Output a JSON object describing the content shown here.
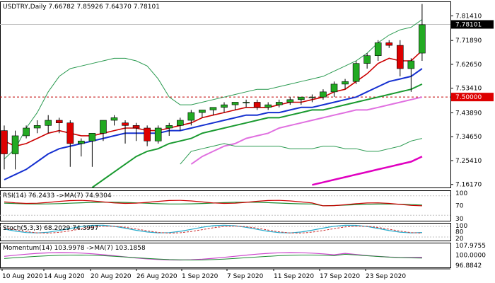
{
  "chart_data": {
    "type": "candlestick",
    "header": {
      "symbol": "USDTRY,Daily",
      "open": "7.66782",
      "high": "7.85926",
      "low": "7.64370",
      "close": "7.78101"
    },
    "price_axis": {
      "min": 7.15,
      "max": 7.87,
      "ticks": [
        "7.81410",
        "7.71890",
        "7.62650",
        "7.53410",
        "7.43890",
        "7.34650",
        "7.25410",
        "7.16170"
      ]
    },
    "current_price": "7.78101",
    "level_line": {
      "value": 7.5,
      "label": "7.50000"
    },
    "x_labels": [
      "10 Aug 2020",
      "14 Aug 2020",
      "20 Aug 2020",
      "26 Aug 2020",
      "1 Sep 2020",
      "7 Sep 2020",
      "11 Sep 2020",
      "17 Sep 2020",
      "23 Sep 2020"
    ],
    "candles": [
      {
        "o": 7.37,
        "h": 7.39,
        "l": 7.22,
        "c": 7.28
      },
      {
        "o": 7.28,
        "h": 7.37,
        "l": 7.22,
        "c": 7.35
      },
      {
        "o": 7.35,
        "h": 7.39,
        "l": 7.34,
        "c": 7.38
      },
      {
        "o": 7.38,
        "h": 7.41,
        "l": 7.36,
        "c": 7.39
      },
      {
        "o": 7.39,
        "h": 7.43,
        "l": 7.36,
        "c": 7.41
      },
      {
        "o": 7.41,
        "h": 7.42,
        "l": 7.36,
        "c": 7.4
      },
      {
        "o": 7.4,
        "h": 7.41,
        "l": 7.23,
        "c": 7.32
      },
      {
        "o": 7.32,
        "h": 7.34,
        "l": 7.27,
        "c": 7.33
      },
      {
        "o": 7.33,
        "h": 7.36,
        "l": 7.23,
        "c": 7.36
      },
      {
        "o": 7.36,
        "h": 7.41,
        "l": 7.33,
        "c": 7.41
      },
      {
        "o": 7.41,
        "h": 7.43,
        "l": 7.39,
        "c": 7.42
      },
      {
        "o": 7.4,
        "h": 7.41,
        "l": 7.32,
        "c": 7.39
      },
      {
        "o": 7.39,
        "h": 7.4,
        "l": 7.33,
        "c": 7.38
      },
      {
        "o": 7.38,
        "h": 7.39,
        "l": 7.31,
        "c": 7.33
      },
      {
        "o": 7.33,
        "h": 7.39,
        "l": 7.32,
        "c": 7.38
      },
      {
        "o": 7.38,
        "h": 7.4,
        "l": 7.35,
        "c": 7.39
      },
      {
        "o": 7.39,
        "h": 7.42,
        "l": 7.37,
        "c": 7.41
      },
      {
        "o": 7.41,
        "h": 7.45,
        "l": 7.39,
        "c": 7.44
      },
      {
        "o": 7.44,
        "h": 7.45,
        "l": 7.42,
        "c": 7.45
      },
      {
        "o": 7.45,
        "h": 7.46,
        "l": 7.43,
        "c": 7.46
      },
      {
        "o": 7.46,
        "h": 7.48,
        "l": 7.44,
        "c": 7.47
      },
      {
        "o": 7.47,
        "h": 7.48,
        "l": 7.45,
        "c": 7.48
      },
      {
        "o": 7.48,
        "h": 7.49,
        "l": 7.46,
        "c": 7.48
      },
      {
        "o": 7.48,
        "h": 7.49,
        "l": 7.45,
        "c": 7.46
      },
      {
        "o": 7.46,
        "h": 7.48,
        "l": 7.45,
        "c": 7.47
      },
      {
        "o": 7.47,
        "h": 7.49,
        "l": 7.46,
        "c": 7.48
      },
      {
        "o": 7.48,
        "h": 7.5,
        "l": 7.47,
        "c": 7.49
      },
      {
        "o": 7.49,
        "h": 7.5,
        "l": 7.47,
        "c": 7.5
      },
      {
        "o": 7.5,
        "h": 7.51,
        "l": 7.48,
        "c": 7.5
      },
      {
        "o": 7.5,
        "h": 7.53,
        "l": 7.49,
        "c": 7.52
      },
      {
        "o": 7.52,
        "h": 7.56,
        "l": 7.5,
        "c": 7.55
      },
      {
        "o": 7.55,
        "h": 7.57,
        "l": 7.53,
        "c": 7.56
      },
      {
        "o": 7.56,
        "h": 7.64,
        "l": 7.55,
        "c": 7.63
      },
      {
        "o": 7.63,
        "h": 7.67,
        "l": 7.61,
        "c": 7.66
      },
      {
        "o": 7.66,
        "h": 7.72,
        "l": 7.64,
        "c": 7.71
      },
      {
        "o": 7.71,
        "h": 7.72,
        "l": 7.69,
        "c": 7.7
      },
      {
        "o": 7.7,
        "h": 7.72,
        "l": 7.58,
        "c": 7.61
      },
      {
        "o": 7.61,
        "h": 7.65,
        "l": 7.52,
        "c": 7.64
      },
      {
        "o": 7.67,
        "h": 7.86,
        "l": 7.64,
        "c": 7.78
      }
    ],
    "overlays": [
      {
        "color": "#cc0000",
        "width": 1.6,
        "values": [
          7.33,
          7.31,
          7.32,
          7.34,
          7.36,
          7.37,
          7.36,
          7.35,
          7.35,
          7.36,
          7.37,
          7.38,
          7.38,
          7.37,
          7.37,
          7.38,
          7.39,
          7.4,
          7.42,
          7.43,
          7.44,
          7.45,
          7.46,
          7.46,
          7.46,
          7.47,
          7.48,
          7.48,
          7.49,
          7.5,
          7.52,
          7.53,
          7.56,
          7.59,
          7.63,
          7.65,
          7.64,
          7.64,
          7.68
        ]
      },
      {
        "color": "#1530d0",
        "width": 2,
        "values": [
          7.18,
          7.2,
          7.22,
          7.25,
          7.28,
          7.3,
          7.31,
          7.32,
          7.33,
          7.34,
          7.35,
          7.36,
          7.36,
          7.36,
          7.36,
          7.37,
          7.37,
          7.38,
          7.39,
          7.4,
          7.41,
          7.42,
          7.43,
          7.43,
          7.44,
          7.44,
          7.45,
          7.46,
          7.46,
          7.47,
          7.48,
          7.49,
          7.5,
          7.52,
          7.54,
          7.56,
          7.57,
          7.58,
          7.61
        ]
      },
      {
        "color": "#1a9a30",
        "width": 2,
        "values": [
          null,
          null,
          null,
          null,
          null,
          null,
          null,
          null,
          7.15,
          7.18,
          7.21,
          7.24,
          7.27,
          7.29,
          7.3,
          7.32,
          7.33,
          7.34,
          7.36,
          7.37,
          7.38,
          7.39,
          7.4,
          7.41,
          7.42,
          7.42,
          7.43,
          7.44,
          7.45,
          7.45,
          7.46,
          7.47,
          7.48,
          7.49,
          7.5,
          7.51,
          7.52,
          7.53,
          7.55
        ]
      },
      {
        "color": "#e070e0",
        "width": 2,
        "values": [
          null,
          null,
          null,
          null,
          null,
          null,
          null,
          null,
          null,
          null,
          null,
          null,
          null,
          null,
          null,
          null,
          null,
          7.24,
          7.27,
          7.29,
          7.31,
          7.32,
          7.34,
          7.35,
          7.36,
          7.38,
          7.39,
          7.4,
          7.41,
          7.42,
          7.43,
          7.44,
          7.45,
          7.45,
          7.46,
          7.47,
          7.48,
          7.49,
          7.5
        ]
      },
      {
        "color": "#e000c0",
        "width": 2.5,
        "values": [
          null,
          null,
          null,
          null,
          null,
          null,
          null,
          null,
          null,
          null,
          null,
          null,
          null,
          null,
          null,
          null,
          null,
          null,
          null,
          null,
          null,
          null,
          null,
          null,
          null,
          null,
          null,
          null,
          7.16,
          7.17,
          7.18,
          7.19,
          7.2,
          7.21,
          7.22,
          7.23,
          7.24,
          7.25,
          7.27
        ]
      },
      {
        "color": "#2a9a50",
        "width": 1,
        "values": [
          7.26,
          7.3,
          7.38,
          7.44,
          7.52,
          7.58,
          7.61,
          7.62,
          7.63,
          7.64,
          7.65,
          7.65,
          7.64,
          7.62,
          7.57,
          7.5,
          7.47,
          7.47,
          7.48,
          7.49,
          7.5,
          7.51,
          7.52,
          7.53,
          7.53,
          7.54,
          7.55,
          7.56,
          7.57,
          7.58,
          7.6,
          7.62,
          7.64,
          7.67,
          7.71,
          7.74,
          7.76,
          7.77,
          7.8
        ]
      },
      {
        "color": "#2a9a50",
        "width": 1,
        "values": [
          null,
          null,
          null,
          null,
          null,
          null,
          null,
          null,
          null,
          null,
          null,
          null,
          null,
          null,
          null,
          null,
          7.24,
          7.29,
          7.3,
          7.31,
          7.32,
          7.31,
          7.31,
          7.31,
          7.31,
          7.31,
          7.3,
          7.3,
          7.3,
          7.31,
          7.31,
          7.3,
          7.3,
          7.29,
          7.29,
          7.3,
          7.31,
          7.33,
          7.34
        ]
      }
    ],
    "indicators": [
      {
        "label": "RSI(14) 76.2433  ->MA(7) 74.9304",
        "axis_labels": [
          "100",
          "70",
          "30"
        ],
        "levels": [
          0.18,
          0.82
        ]
      },
      {
        "label": "Stoch(5,3,3) 68.2029 74.3997",
        "axis_labels": [
          "100",
          "80",
          "20"
        ],
        "levels": [
          0.2,
          0.8
        ]
      },
      {
        "label": "Momentum(14) 103.9978  ->MA(7) 103.1858",
        "axis_labels": [
          "107.9755",
          "100.0000",
          "96.8842"
        ],
        "levels": []
      }
    ]
  }
}
